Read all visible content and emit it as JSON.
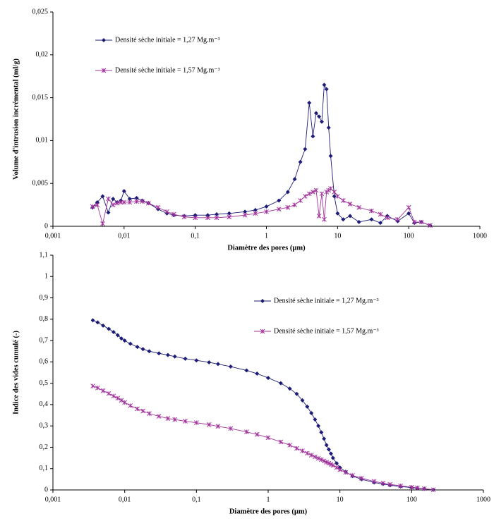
{
  "chart_data": [
    {
      "type": "line",
      "x_scale": "log",
      "marker_size": 3,
      "legend_position": "upper left",
      "ylabel": "Volume d'intrusion incrémental (ml/g)",
      "xlabel": "Diamètre des pores (µm)",
      "xlim": [
        0.001,
        1000
      ],
      "xticks": [
        {
          "value": 0.001,
          "label": "0,001"
        },
        {
          "value": 0.01,
          "label": "0,01"
        },
        {
          "value": 0.1,
          "label": "0,1"
        },
        1,
        10,
        100,
        1000
      ],
      "ylim": [
        0,
        0.025
      ],
      "yticks": [
        0,
        {
          "value": 0.005,
          "label": "0,005"
        },
        {
          "value": 0.01,
          "label": "0,01"
        },
        {
          "value": 0.015,
          "label": "0,015"
        },
        {
          "value": 0.02,
          "label": "0,02"
        },
        {
          "value": 0.025,
          "label": "0,025"
        }
      ],
      "x": [
        0.0036,
        0.0042,
        0.005,
        0.006,
        0.007,
        0.008,
        0.009,
        0.01,
        0.012,
        0.015,
        0.018,
        0.022,
        0.03,
        0.04,
        0.05,
        0.07,
        0.1,
        0.15,
        0.2,
        0.3,
        0.5,
        0.7,
        1,
        1.5,
        2,
        2.5,
        3,
        3.5,
        4,
        4.5,
        5,
        5.5,
        6,
        6.5,
        7,
        7.5,
        8,
        9,
        10,
        12,
        15,
        20,
        30,
        40,
        50,
        70,
        100,
        120,
        150,
        200
      ],
      "series": [
        {
          "name": "Densité sèche initiale = 1,27 Mg.m⁻³",
          "color": "#1c1c78",
          "marker": "diamond",
          "values": [
            0.0022,
            0.0028,
            0.0035,
            0.0016,
            0.0032,
            0.0028,
            0.003,
            0.0041,
            0.0032,
            0.0033,
            0.003,
            0.0027,
            0.002,
            0.0015,
            0.0013,
            0.0012,
            0.0013,
            0.0013,
            0.0014,
            0.0015,
            0.0017,
            0.0019,
            0.0023,
            0.003,
            0.004,
            0.0055,
            0.0075,
            0.009,
            0.0144,
            0.0105,
            0.0132,
            0.0128,
            0.0122,
            0.0165,
            0.016,
            0.0115,
            0.0082,
            0.0035,
            0.0015,
            0.0008,
            0.0012,
            0.0005,
            0.0008,
            0.0004,
            0.0012,
            0.0006,
            0.0015,
            0.0004,
            0.0005,
            0.0001
          ]
        },
        {
          "name": "Densité sèche initiale = 1,57 Mg.m⁻³",
          "color": "#a2339c",
          "marker": "x",
          "values": [
            0.0023,
            0.0025,
            0.0003,
            0.0032,
            0.0025,
            0.0027,
            0.0028,
            0.0028,
            0.0028,
            0.0029,
            0.0029,
            0.0027,
            0.0022,
            0.0017,
            0.0014,
            0.0011,
            0.001,
            0.001,
            0.001,
            0.0011,
            0.0013,
            0.0015,
            0.0017,
            0.002,
            0.0022,
            0.0025,
            0.003,
            0.0035,
            0.0038,
            0.004,
            0.0042,
            0.0012,
            0.0038,
            0.0008,
            0.004,
            0.0042,
            0.0044,
            0.004,
            0.0035,
            0.003,
            0.0026,
            0.0022,
            0.0018,
            0.0014,
            0.001,
            0.0008,
            0.0022,
            0.0005,
            0.0005,
            0.0001
          ]
        }
      ]
    },
    {
      "type": "line",
      "x_scale": "log",
      "marker_size": 3,
      "legend_position": "upper right",
      "ylabel": "Indice des vides cumulé (-)",
      "xlabel": "Diamètre des pores (µm)",
      "xlim": [
        0.001,
        1000
      ],
      "xticks": [
        {
          "value": 0.001,
          "label": "0,001"
        },
        {
          "value": 0.01,
          "label": "0,01"
        },
        {
          "value": 0.1,
          "label": "0,1"
        },
        1,
        10,
        100,
        1000
      ],
      "ylim": [
        0,
        1.1
      ],
      "yticks": [
        0,
        {
          "value": 0.1,
          "label": "0,1"
        },
        {
          "value": 0.2,
          "label": "0,2"
        },
        {
          "value": 0.3,
          "label": "0,3"
        },
        {
          "value": 0.4,
          "label": "0,4"
        },
        {
          "value": 0.5,
          "label": "0,5"
        },
        {
          "value": 0.6,
          "label": "0,6"
        },
        {
          "value": 0.7,
          "label": "0,7"
        },
        {
          "value": 0.8,
          "label": "0,8"
        },
        {
          "value": 0.9,
          "label": "0,9"
        },
        1,
        {
          "value": 1.1,
          "label": "1,1"
        }
      ],
      "x": [
        0.0036,
        0.0042,
        0.005,
        0.006,
        0.007,
        0.008,
        0.009,
        0.01,
        0.012,
        0.015,
        0.018,
        0.022,
        0.03,
        0.04,
        0.05,
        0.07,
        0.1,
        0.15,
        0.2,
        0.3,
        0.5,
        0.7,
        1,
        1.5,
        2,
        2.5,
        3,
        3.5,
        4,
        4.5,
        5,
        5.5,
        6,
        6.5,
        7,
        7.5,
        8,
        9,
        10,
        12,
        15,
        20,
        30,
        40,
        50,
        70,
        100,
        120,
        150,
        200
      ],
      "series": [
        {
          "name": "Densité sèche initiale = 1,27 Mg.m⁻³",
          "color": "#1c1c78",
          "marker": "diamond",
          "values": [
            0.795,
            0.785,
            0.77,
            0.755,
            0.74,
            0.725,
            0.71,
            0.7,
            0.685,
            0.67,
            0.66,
            0.65,
            0.64,
            0.632,
            0.625,
            0.615,
            0.607,
            0.598,
            0.59,
            0.578,
            0.56,
            0.545,
            0.525,
            0.5,
            0.475,
            0.45,
            0.42,
            0.39,
            0.36,
            0.33,
            0.3,
            0.27,
            0.24,
            0.21,
            0.19,
            0.17,
            0.15,
            0.125,
            0.105,
            0.085,
            0.065,
            0.05,
            0.035,
            0.028,
            0.022,
            0.016,
            0.011,
            0.008,
            0.005,
            0.001
          ]
        },
        {
          "name": "Densité sèche initiale = 1,57 Mg.m⁻³",
          "color": "#a2339c",
          "marker": "x",
          "values": [
            0.487,
            0.478,
            0.465,
            0.452,
            0.44,
            0.43,
            0.42,
            0.41,
            0.395,
            0.38,
            0.37,
            0.358,
            0.345,
            0.335,
            0.33,
            0.322,
            0.315,
            0.306,
            0.298,
            0.288,
            0.272,
            0.26,
            0.245,
            0.225,
            0.21,
            0.195,
            0.183,
            0.172,
            0.163,
            0.155,
            0.148,
            0.142,
            0.136,
            0.13,
            0.125,
            0.12,
            0.115,
            0.105,
            0.095,
            0.082,
            0.068,
            0.055,
            0.04,
            0.032,
            0.026,
            0.019,
            0.013,
            0.01,
            0.006,
            0.001
          ]
        }
      ]
    }
  ]
}
